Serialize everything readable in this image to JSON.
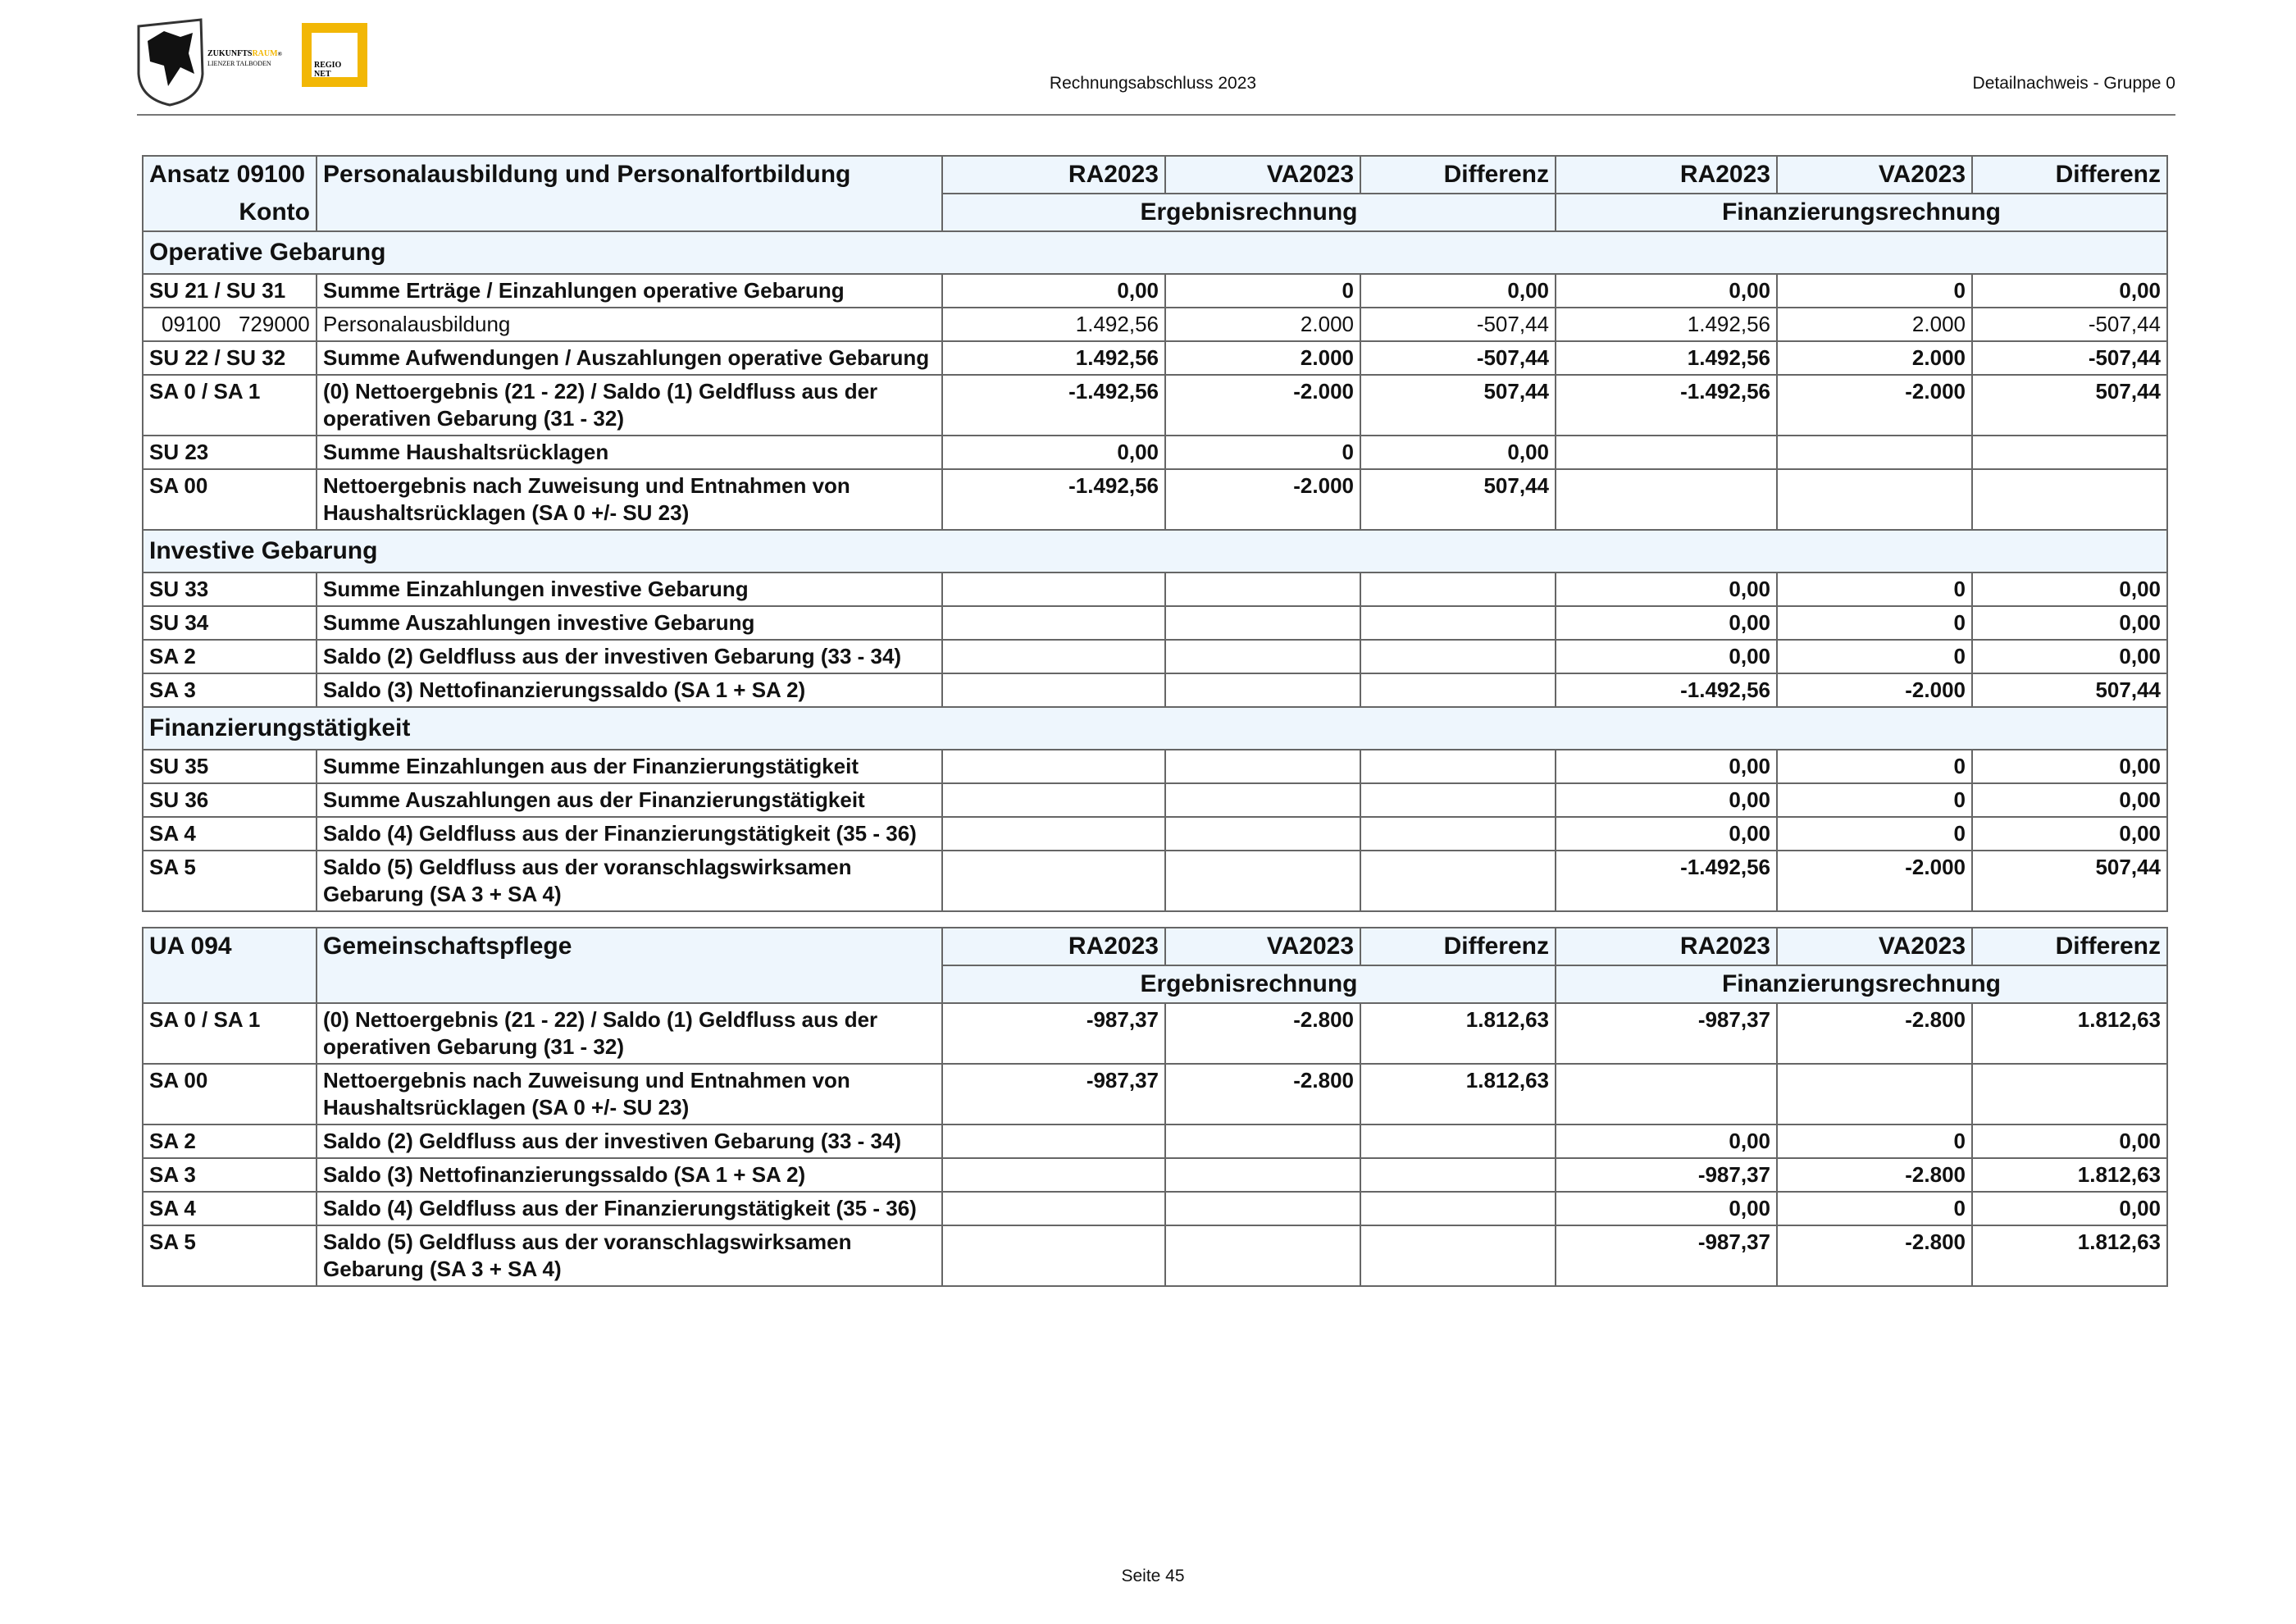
{
  "header": {
    "title": "Rechnungsabschluss 2023",
    "subtitle": "Detailnachweis - Gruppe 0",
    "logo": {
      "name_a": "ZUKUNFTS",
      "name_b": "RAUM",
      "reg": "®",
      "sub": "LIENZER TALBODEN",
      "regio": "REGIO",
      "net": "NET"
    }
  },
  "tables": [
    {
      "id_label": "Ansatz 09100",
      "konto_label": "Konto",
      "name": "Personalausbildung und Personalfortbildung",
      "columns": [
        "RA2023",
        "VA2023",
        "Differenz",
        "RA2023",
        "VA2023",
        "Differenz"
      ],
      "groups": [
        "Ergebnisrechnung",
        "Finanzierungsrechnung"
      ],
      "rows": [
        {
          "section": "Operative Gebarung"
        },
        {
          "cells": [
            "SU 21 / SU 31",
            "Summe Erträge / Einzahlungen operative Gebarung",
            "0,00",
            "0",
            "0,00",
            "0,00",
            "0",
            "0,00"
          ]
        },
        {
          "cells": [
            "09100   729000",
            "Personalausbildung",
            "1.492,56",
            "2.000",
            "-507,44",
            "1.492,56",
            "2.000",
            "-507,44"
          ],
          "bold": false
        },
        {
          "cells": [
            "SU 22 / SU 32",
            "Summe Aufwendungen / Auszahlungen operative Gebarung",
            "1.492,56",
            "2.000",
            "-507,44",
            "1.492,56",
            "2.000",
            "-507,44"
          ]
        },
        {
          "cells": [
            "SA 0 / SA 1",
            "(0) Nettoergebnis (21 - 22) / Saldo (1) Geldfluss aus der operativen Gebarung (31 - 32)",
            "-1.492,56",
            "-2.000",
            "507,44",
            "-1.492,56",
            "-2.000",
            "507,44"
          ]
        },
        {
          "cells": [
            "SU 23",
            "Summe Haushaltsrücklagen",
            "0,00",
            "0",
            "0,00",
            null,
            null,
            null
          ]
        },
        {
          "cells": [
            "SA 00",
            "Nettoergebnis nach Zuweisung und Entnahmen von Haushaltsrücklagen (SA 0 +/- SU 23)",
            "-1.492,56",
            "-2.000",
            "507,44",
            null,
            null,
            null
          ]
        },
        {
          "section": "Investive Gebarung"
        },
        {
          "cells": [
            "SU 33",
            "Summe Einzahlungen investive Gebarung",
            null,
            null,
            null,
            "0,00",
            "0",
            "0,00"
          ]
        },
        {
          "cells": [
            "SU 34",
            "Summe Auszahlungen investive Gebarung",
            null,
            null,
            null,
            "0,00",
            "0",
            "0,00"
          ]
        },
        {
          "cells": [
            "SA 2",
            "Saldo (2) Geldfluss aus der investiven Gebarung (33 - 34)",
            null,
            null,
            null,
            "0,00",
            "0",
            "0,00"
          ]
        },
        {
          "cells": [
            "SA 3",
            "Saldo (3) Nettofinanzierungssaldo (SA 1 + SA 2)",
            null,
            null,
            null,
            "-1.492,56",
            "-2.000",
            "507,44"
          ]
        },
        {
          "section": "Finanzierungstätigkeit"
        },
        {
          "cells": [
            "SU 35",
            "Summe Einzahlungen aus der Finanzierungstätigkeit",
            null,
            null,
            null,
            "0,00",
            "0",
            "0,00"
          ]
        },
        {
          "cells": [
            "SU 36",
            "Summe Auszahlungen aus der Finanzierungstätigkeit",
            null,
            null,
            null,
            "0,00",
            "0",
            "0,00"
          ]
        },
        {
          "cells": [
            "SA 4",
            "Saldo (4) Geldfluss aus der Finanzierungstätigkeit (35 - 36)",
            null,
            null,
            null,
            "0,00",
            "0",
            "0,00"
          ]
        },
        {
          "cells": [
            "SA 5",
            "Saldo (5) Geldfluss aus der voranschlagswirksamen Gebarung (SA 3 + SA 4)",
            null,
            null,
            null,
            "-1.492,56",
            "-2.000",
            "507,44"
          ]
        }
      ]
    },
    {
      "id_label": "UA 094",
      "name": "Gemeinschaftspflege",
      "columns": [
        "RA2023",
        "VA2023",
        "Differenz",
        "RA2023",
        "VA2023",
        "Differenz"
      ],
      "groups": [
        "Ergebnisrechnung",
        "Finanzierungsrechnung"
      ],
      "rows": [
        {
          "cells": [
            "SA 0 / SA 1",
            "(0) Nettoergebnis (21 - 22) / Saldo (1) Geldfluss aus der operativen Gebarung (31 - 32)",
            "-987,37",
            "-2.800",
            "1.812,63",
            "-987,37",
            "-2.800",
            "1.812,63"
          ]
        },
        {
          "cells": [
            "SA 00",
            "Nettoergebnis nach Zuweisung und Entnahmen von Haushaltsrücklagen (SA 0 +/- SU 23)",
            "-987,37",
            "-2.800",
            "1.812,63",
            null,
            null,
            null
          ]
        },
        {
          "cells": [
            "SA 2",
            "Saldo (2) Geldfluss aus der investiven Gebarung (33 - 34)",
            null,
            null,
            null,
            "0,00",
            "0",
            "0,00"
          ]
        },
        {
          "cells": [
            "SA 3",
            "Saldo (3) Nettofinanzierungssaldo (SA 1 + SA 2)",
            null,
            null,
            null,
            "-987,37",
            "-2.800",
            "1.812,63"
          ]
        },
        {
          "cells": [
            "SA 4",
            "Saldo (4) Geldfluss aus der Finanzierungstätigkeit (35 - 36)",
            null,
            null,
            null,
            "0,00",
            "0",
            "0,00"
          ]
        },
        {
          "cells": [
            "SA 5",
            "Saldo (5) Geldfluss aus der voranschlagswirksamen Gebarung (SA 3 + SA 4)",
            null,
            null,
            null,
            "-987,37",
            "-2.800",
            "1.812,63"
          ]
        }
      ]
    }
  ],
  "footer": {
    "page": "Seite 45"
  }
}
